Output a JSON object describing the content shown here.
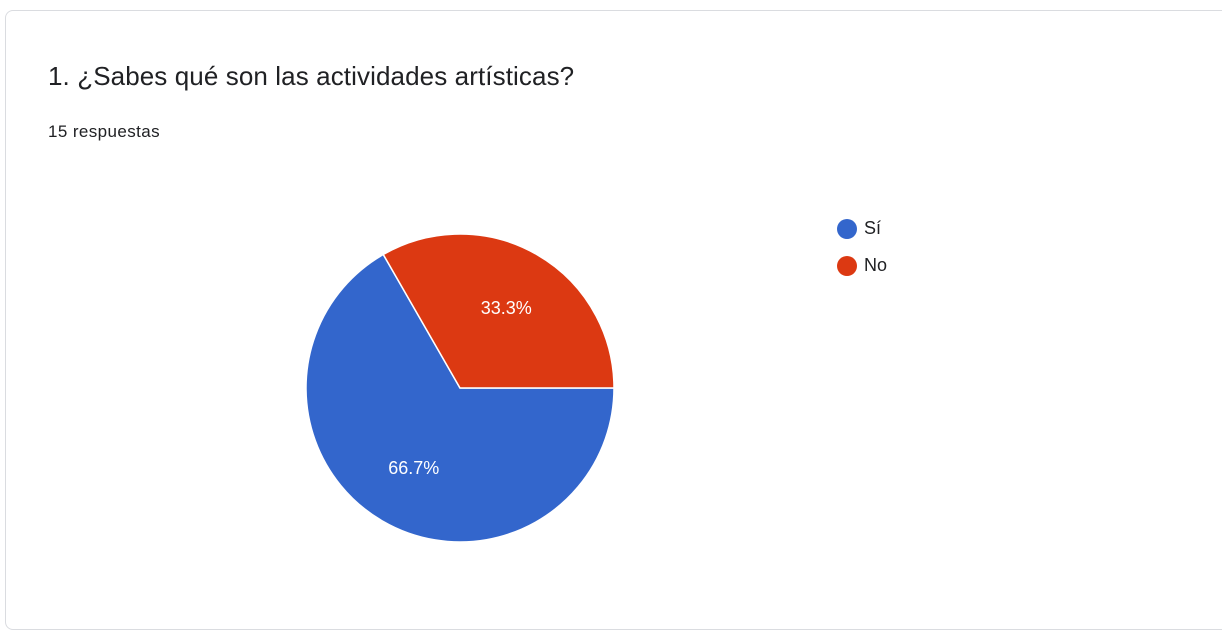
{
  "question": {
    "title": "1. ¿Sabes qué son las actividades artísticas?",
    "response_count": "15 respuestas"
  },
  "chart_data": {
    "type": "pie",
    "categories": [
      "Sí",
      "No"
    ],
    "values": [
      66.7,
      33.3
    ],
    "data_labels": [
      "66.7%",
      "33.3%"
    ],
    "colors": [
      "#3366cc",
      "#dc3912"
    ],
    "legend_position": "right"
  }
}
